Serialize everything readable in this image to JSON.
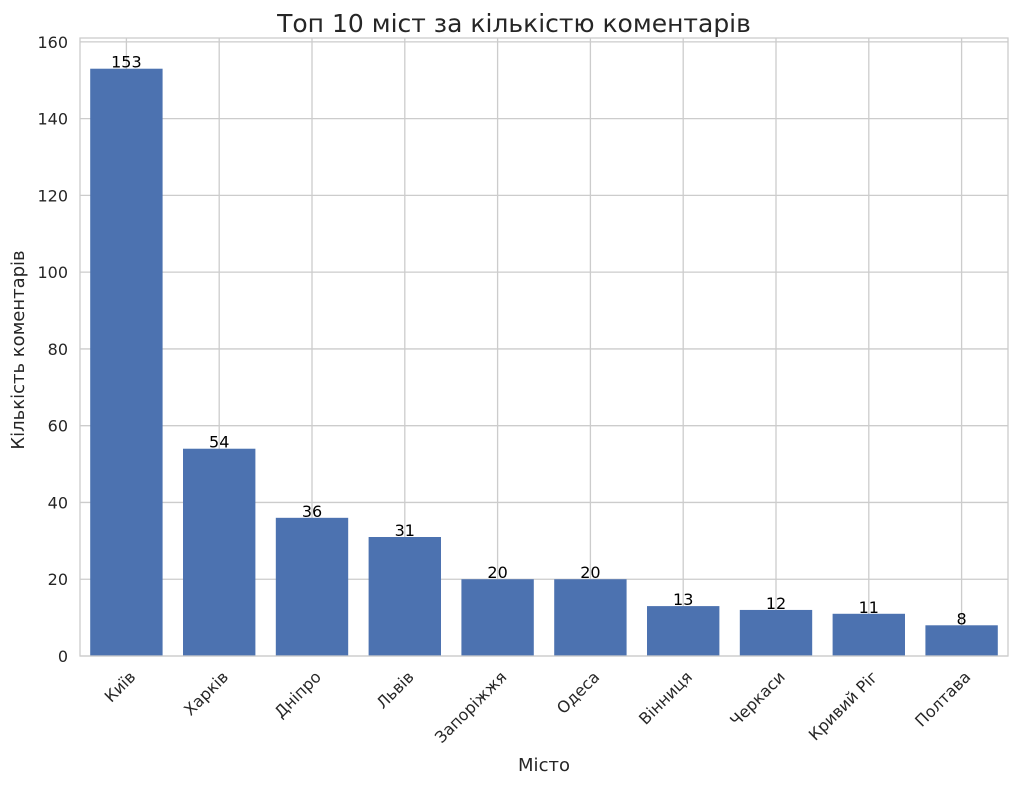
{
  "chart_data": {
    "type": "bar",
    "title": "Топ 10 міст за кількістю коментарів",
    "xlabel": "Місто",
    "ylabel": "Кількість коментарів",
    "categories": [
      "Київ",
      "Харків",
      "Дніпро",
      "Львів",
      "Запоріжжя",
      "Одеса",
      "Вінниця",
      "Черкаси",
      "Кривий Ріг",
      "Полтава"
    ],
    "values": [
      153,
      54,
      36,
      31,
      20,
      20,
      13,
      12,
      11,
      8
    ],
    "ylim": [
      0,
      161
    ],
    "yticks": [
      0,
      20,
      40,
      60,
      80,
      100,
      120,
      140,
      160
    ],
    "grid": true,
    "data_labels": true,
    "colors": {
      "bar": "#4c72b0",
      "grid": "#cccccc",
      "frame": "#cccccc",
      "text": "#262626",
      "data_label": "#000000"
    }
  }
}
